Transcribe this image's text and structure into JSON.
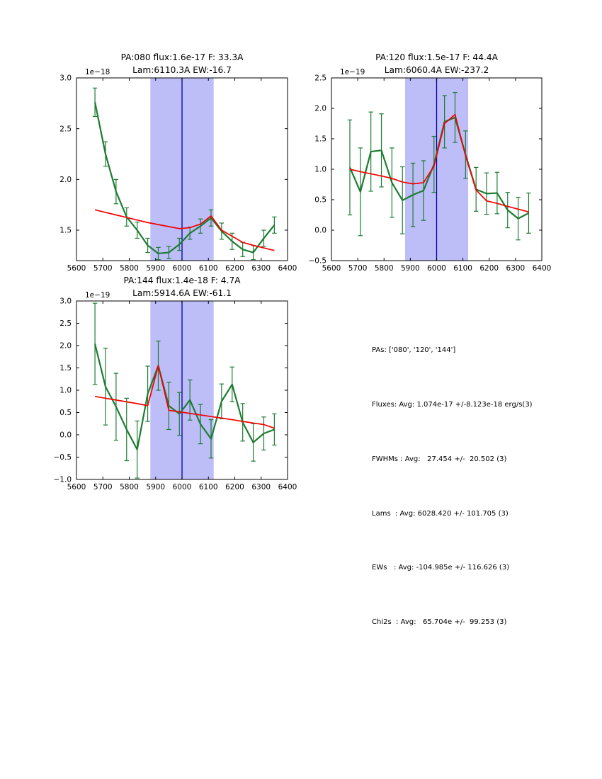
{
  "figure": {
    "background": "#ffffff",
    "colors": {
      "spectrum_line": "#1d7c31",
      "fit_line": "#f40000",
      "band_fill": "#bdbdf8",
      "center_line": "#0000a6",
      "axis": "#000000"
    }
  },
  "stats": {
    "lines": [
      "PAs: ['080', '120', '144']",
      "Fluxes: Avg: 1.074e-17 +/-8.123e-18 erg/s(3)",
      "FWHMs : Avg:   27.454 +/-  20.502 (3)",
      "Lams  : Avg: 6028.420 +/- 101.705 (3)",
      "EWs   : Avg: -104.985e +/- 116.626 (3)",
      "Chi2s  : Avg:   65.704e +/-  99.253 (3)"
    ]
  },
  "chart_data": [
    {
      "type": "line",
      "title": "PA:080 flux:1.6e-17 F: 33.3A",
      "subtitle": "Lam:6110.3A EW:-16.7",
      "offset_label": "1e−18",
      "xlim": [
        5600,
        6400
      ],
      "ylim": [
        1.2,
        3.0
      ],
      "xticks": [
        5600,
        5700,
        5800,
        5900,
        6000,
        6100,
        6200,
        6300,
        6400
      ],
      "yticks": [
        1.5,
        2.0,
        2.5,
        3.0
      ],
      "band": [
        5880,
        6120
      ],
      "vline": 6000,
      "grid": false,
      "x": [
        5670,
        5710,
        5750,
        5790,
        5830,
        5870,
        5910,
        5950,
        5990,
        6030,
        6070,
        6110,
        6150,
        6190,
        6230,
        6270,
        6310,
        6350
      ],
      "series": [
        {
          "name": "spectrum",
          "values": [
            2.76,
            2.25,
            1.88,
            1.63,
            1.5,
            1.35,
            1.27,
            1.28,
            1.36,
            1.47,
            1.54,
            1.62,
            1.49,
            1.39,
            1.31,
            1.28,
            1.42,
            1.55
          ],
          "errors": [
            0.14,
            0.12,
            0.12,
            0.09,
            0.08,
            0.07,
            0.06,
            0.06,
            0.06,
            0.06,
            0.07,
            0.08,
            0.08,
            0.08,
            0.07,
            0.07,
            0.08,
            0.08
          ]
        },
        {
          "name": "fit",
          "values": [
            1.7,
            1.675,
            1.65,
            1.625,
            1.6,
            1.575,
            1.555,
            1.535,
            1.515,
            1.525,
            1.56,
            1.64,
            1.5,
            1.44,
            1.38,
            1.35,
            1.325,
            1.3
          ]
        }
      ]
    },
    {
      "type": "line",
      "title": "PA:120 flux:1.5e-17 F: 44.4A",
      "subtitle": "Lam:6060.4A EW:-237.2",
      "offset_label": "1e−19",
      "xlim": [
        5600,
        6400
      ],
      "ylim": [
        -0.5,
        2.5
      ],
      "xticks": [
        5600,
        5700,
        5800,
        5900,
        6000,
        6100,
        6200,
        6300,
        6400
      ],
      "yticks": [
        -0.5,
        0.0,
        0.5,
        1.0,
        1.5,
        2.0,
        2.5
      ],
      "band": [
        5880,
        6120
      ],
      "vline": 6000,
      "grid": false,
      "x": [
        5670,
        5710,
        5750,
        5790,
        5830,
        5870,
        5910,
        5950,
        5990,
        6030,
        6070,
        6110,
        6150,
        6190,
        6230,
        6270,
        6310,
        6350
      ],
      "series": [
        {
          "name": "spectrum",
          "values": [
            1.03,
            0.63,
            1.29,
            1.31,
            0.78,
            0.49,
            0.58,
            0.65,
            1.08,
            1.78,
            1.85,
            1.24,
            0.67,
            0.6,
            0.61,
            0.33,
            0.19,
            0.28
          ],
          "errors": [
            0.78,
            0.72,
            0.65,
            0.6,
            0.57,
            0.55,
            0.52,
            0.49,
            0.46,
            0.43,
            0.41,
            0.39,
            0.36,
            0.34,
            0.34,
            0.29,
            0.35,
            0.33
          ]
        },
        {
          "name": "fit",
          "values": [
            1.0,
            0.96,
            0.925,
            0.89,
            0.85,
            0.79,
            0.76,
            0.78,
            1.05,
            1.75,
            1.9,
            1.22,
            0.66,
            0.48,
            0.44,
            0.39,
            0.345,
            0.3
          ]
        }
      ]
    },
    {
      "type": "line",
      "title": "PA:144 flux:1.4e-18 F: 4.7A",
      "subtitle": "Lam:5914.6A EW:-61.1",
      "offset_label": "1e−19",
      "xlim": [
        5600,
        6400
      ],
      "ylim": [
        -1.0,
        3.0
      ],
      "xticks": [
        5600,
        5700,
        5800,
        5900,
        6000,
        6100,
        6200,
        6300,
        6400
      ],
      "yticks": [
        -1.0,
        -0.5,
        0.0,
        0.5,
        1.0,
        1.5,
        2.0,
        2.5,
        3.0
      ],
      "band": [
        5880,
        6120
      ],
      "vline": 6000,
      "grid": false,
      "x": [
        5670,
        5710,
        5750,
        5790,
        5830,
        5870,
        5910,
        5950,
        5990,
        6030,
        6070,
        6110,
        6150,
        6190,
        6230,
        6270,
        6310,
        6350
      ],
      "series": [
        {
          "name": "spectrum",
          "values": [
            2.04,
            1.08,
            0.63,
            0.12,
            -0.33,
            0.92,
            1.55,
            0.65,
            0.47,
            0.78,
            0.24,
            -0.09,
            0.75,
            1.13,
            0.28,
            -0.17,
            0.03,
            0.12
          ],
          "errors": [
            0.91,
            0.86,
            0.75,
            0.7,
            0.64,
            0.62,
            0.55,
            0.53,
            0.48,
            0.45,
            0.44,
            0.43,
            0.39,
            0.39,
            0.42,
            0.42,
            0.37,
            0.35
          ]
        },
        {
          "name": "fit",
          "values": [
            0.86,
            0.82,
            0.78,
            0.74,
            0.7,
            0.655,
            1.55,
            0.55,
            0.515,
            0.48,
            0.445,
            0.41,
            0.375,
            0.34,
            0.3,
            0.265,
            0.23,
            0.15
          ]
        }
      ]
    }
  ]
}
